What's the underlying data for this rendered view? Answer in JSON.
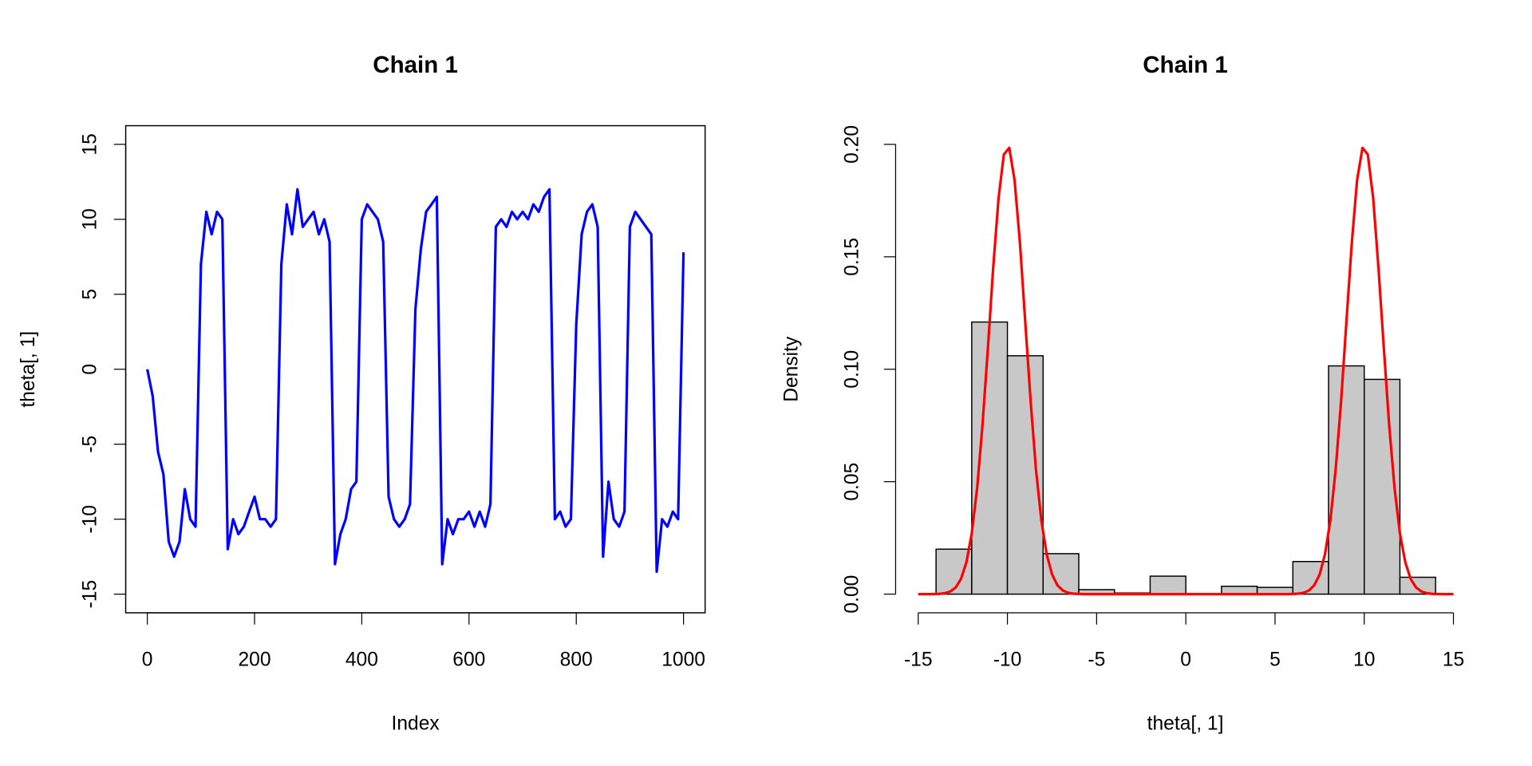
{
  "chart_data": [
    {
      "type": "line",
      "title": "Chain 1",
      "xlabel": "Index",
      "ylabel": "theta[, 1]",
      "xlim": [
        0,
        1000
      ],
      "ylim": [
        -15,
        15
      ],
      "xticks": [
        "0",
        "200",
        "400",
        "600",
        "800",
        "1000"
      ],
      "yticks": [
        "-15",
        "-10",
        "-5",
        "0",
        "5",
        "10",
        "15"
      ],
      "color": "#0000ff",
      "x_step": 10,
      "values": [
        0,
        -1.8,
        -5.5,
        -7,
        -11.5,
        -12.5,
        -11.5,
        -8,
        -10,
        -10.5,
        7,
        10.5,
        9,
        10.5,
        10,
        -12,
        -10,
        -11,
        -10.5,
        -9.5,
        -8.5,
        -10,
        -10,
        -10.5,
        -10,
        7,
        11,
        9,
        12,
        9.5,
        10,
        10.5,
        9,
        10,
        8.5,
        -13,
        -11,
        -10,
        -8,
        -7.5,
        10,
        11,
        10.5,
        10,
        8.5,
        -8.5,
        -10,
        -10.5,
        -10,
        -9,
        4,
        8,
        10.5,
        11,
        11.5,
        -13,
        -10,
        -11,
        -10,
        -10,
        -9.5,
        -10.5,
        -9.5,
        -10.5,
        -9,
        9.5,
        10,
        9.5,
        10.5,
        10,
        10.5,
        10,
        11,
        10.5,
        11.5,
        12,
        -10,
        -9.5,
        -10.5,
        -10,
        3,
        9,
        10.5,
        11,
        9.5,
        -12.5,
        -7.5,
        -10,
        -10.5,
        -9.5,
        9.5,
        10.5,
        10,
        9.5,
        9,
        -13.5,
        -10,
        -10.5,
        -9.5,
        -10,
        7.8
      ]
    },
    {
      "type": "bar",
      "title": "Chain 1",
      "xlabel": "theta[, 1]",
      "ylabel": "Density",
      "xlim": [
        -15,
        15
      ],
      "ylim": [
        0,
        0.2
      ],
      "xticks": [
        "-15",
        "-10",
        "-5",
        "0",
        "5",
        "10",
        "15"
      ],
      "yticks": [
        "0.00",
        "0.05",
        "0.10",
        "0.15",
        "0.20"
      ],
      "bin_edges": [
        -14,
        -12,
        -10,
        -8,
        -6,
        -4,
        -2,
        0,
        2,
        4,
        6,
        8,
        10,
        12,
        14
      ],
      "values": [
        0.02,
        0.121,
        0.106,
        0.018,
        0.002,
        0.0005,
        0.008,
        0,
        0.0035,
        0.003,
        0.0145,
        0.1015,
        0.0955,
        0.0075
      ],
      "bar_color": "#c8c8c8",
      "density_curve": {
        "description": "0.5*N(-10,1)+0.5*N(10,1)",
        "color": "#ff0000"
      }
    }
  ]
}
